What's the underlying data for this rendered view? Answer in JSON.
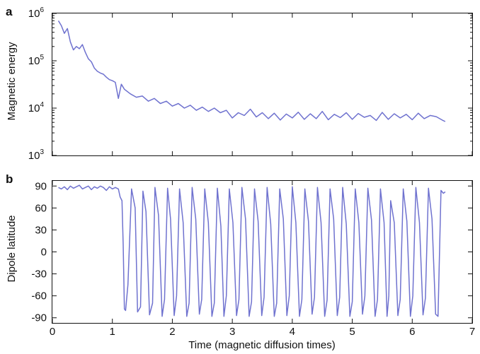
{
  "chart_data": [
    {
      "panel_letter": "a",
      "type": "line",
      "xlabel": "",
      "ylabel": "Magnetic energy",
      "yscale": "log",
      "xlim": [
        0,
        7
      ],
      "ylim": [
        1000,
        1000000
      ],
      "y_ticks": [
        {
          "value": 1000,
          "base": "10",
          "exp": "3"
        },
        {
          "value": 10000,
          "base": "10",
          "exp": "4"
        },
        {
          "value": 100000,
          "base": "10",
          "exp": "5"
        },
        {
          "value": 1000000,
          "base": "10",
          "exp": "6"
        }
      ],
      "color": "#6f72cf",
      "grid": false,
      "series": [
        {
          "x": [
            0.1,
            0.15,
            0.2,
            0.25,
            0.3,
            0.35,
            0.4,
            0.45,
            0.5,
            0.55,
            0.6,
            0.65,
            0.7,
            0.75,
            0.8,
            0.85,
            0.9,
            0.95,
            1.0,
            1.05,
            1.1,
            1.15,
            1.2,
            1.3,
            1.4,
            1.5,
            1.6,
            1.7,
            1.8,
            1.9,
            2.0,
            2.1,
            2.2,
            2.3,
            2.4,
            2.5,
            2.6,
            2.7,
            2.8,
            2.9,
            3.0,
            3.1,
            3.2,
            3.3,
            3.4,
            3.5,
            3.6,
            3.7,
            3.8,
            3.9,
            4.0,
            4.1,
            4.2,
            4.3,
            4.4,
            4.5,
            4.6,
            4.7,
            4.8,
            4.9,
            5.0,
            5.1,
            5.2,
            5.3,
            5.4,
            5.5,
            5.6,
            5.7,
            5.8,
            5.9,
            6.0,
            6.1,
            6.2,
            6.3,
            6.4,
            6.5,
            6.55
          ],
          "y": [
            700000,
            550000,
            380000,
            480000,
            250000,
            170000,
            200000,
            180000,
            220000,
            150000,
            110000,
            95000,
            70000,
            60000,
            55000,
            52000,
            45000,
            40000,
            38000,
            35000,
            16000,
            32000,
            25000,
            20000,
            17000,
            18000,
            14000,
            16000,
            12500,
            14000,
            11000,
            12500,
            10000,
            11500,
            9000,
            10500,
            8500,
            10000,
            8000,
            9000,
            6200,
            8000,
            7000,
            9500,
            6500,
            8000,
            6000,
            7800,
            5600,
            7500,
            6200,
            8200,
            5800,
            7600,
            6000,
            8500,
            5700,
            7400,
            6300,
            8000,
            5800,
            7700,
            6400,
            7000,
            5500,
            8100,
            5800,
            7600,
            6200,
            7400,
            5700,
            7800,
            6000,
            7000,
            6600,
            5600,
            5200
          ]
        }
      ]
    },
    {
      "panel_letter": "b",
      "type": "line",
      "xlabel": "Time (magnetic diffusion times)",
      "ylabel": "Dipole latitude",
      "xlim": [
        0,
        7
      ],
      "ylim": [
        -97,
        97
      ],
      "x_ticks": [
        0,
        1,
        2,
        3,
        4,
        5,
        6,
        7
      ],
      "y_ticks": [
        90,
        60,
        30,
        0,
        -30,
        -60,
        -90
      ],
      "color": "#6f72cf",
      "grid": false,
      "series": [
        {
          "x": [
            0.1,
            0.15,
            0.2,
            0.25,
            0.3,
            0.35,
            0.4,
            0.45,
            0.5,
            0.55,
            0.6,
            0.65,
            0.7,
            0.75,
            0.8,
            0.85,
            0.9,
            0.95,
            1.0,
            1.05,
            1.1,
            1.13,
            1.16,
            1.18,
            1.2,
            1.22,
            1.26,
            1.32,
            1.38,
            1.42,
            1.47,
            1.51,
            1.56,
            1.62,
            1.67,
            1.71,
            1.77,
            1.83,
            1.87,
            1.92,
            1.97,
            2.03,
            2.07,
            2.12,
            2.18,
            2.24,
            2.28,
            2.33,
            2.39,
            2.45,
            2.49,
            2.54,
            2.6,
            2.66,
            2.7,
            2.75,
            2.81,
            2.86,
            2.9,
            2.95,
            3.01,
            3.07,
            3.11,
            3.16,
            3.22,
            3.28,
            3.32,
            3.37,
            3.43,
            3.49,
            3.53,
            3.58,
            3.64,
            3.7,
            3.74,
            3.79,
            3.85,
            3.91,
            3.95,
            4.0,
            4.06,
            4.12,
            4.16,
            4.21,
            4.27,
            4.33,
            4.37,
            4.42,
            4.48,
            4.54,
            4.58,
            4.63,
            4.69,
            4.75,
            4.79,
            4.84,
            4.9,
            4.96,
            5.0,
            5.05,
            5.11,
            5.17,
            5.21,
            5.26,
            5.32,
            5.38,
            5.42,
            5.47,
            5.53,
            5.58,
            5.61,
            5.64,
            5.7,
            5.76,
            5.8,
            5.85,
            5.91,
            5.97,
            6.01,
            6.06,
            6.12,
            6.18,
            6.22,
            6.27,
            6.33,
            6.39,
            6.43,
            6.48,
            6.52,
            6.55
          ],
          "y": [
            88,
            86,
            89,
            85,
            90,
            87,
            89,
            91,
            86,
            88,
            90,
            85,
            89,
            87,
            90,
            88,
            84,
            89,
            86,
            88,
            86,
            75,
            70,
            10,
            -78,
            -80,
            -45,
            86,
            60,
            -82,
            -75,
            83,
            55,
            -86,
            -70,
            88,
            50,
            -88,
            -65,
            87,
            45,
            -87,
            -60,
            86,
            40,
            -88,
            -70,
            88,
            45,
            -85,
            -65,
            86,
            40,
            -88,
            -70,
            87,
            35,
            -88,
            -60,
            86,
            40,
            -87,
            -65,
            88,
            45,
            -88,
            -68,
            86,
            42,
            -87,
            -62,
            88,
            38,
            -88,
            -70,
            86,
            45,
            -87,
            -60,
            89,
            40,
            -88,
            -65,
            86,
            42,
            -85,
            -62,
            88,
            40,
            -88,
            -66,
            86,
            45,
            -87,
            -62,
            88,
            38,
            -88,
            -68,
            86,
            40,
            -85,
            -60,
            87,
            44,
            -88,
            -65,
            86,
            40,
            -88,
            -60,
            70,
            40,
            -87,
            -65,
            86,
            42,
            -88,
            -60,
            88,
            40,
            -86,
            -63,
            87,
            45,
            -85,
            -88,
            84,
            80,
            82
          ]
        }
      ]
    }
  ]
}
